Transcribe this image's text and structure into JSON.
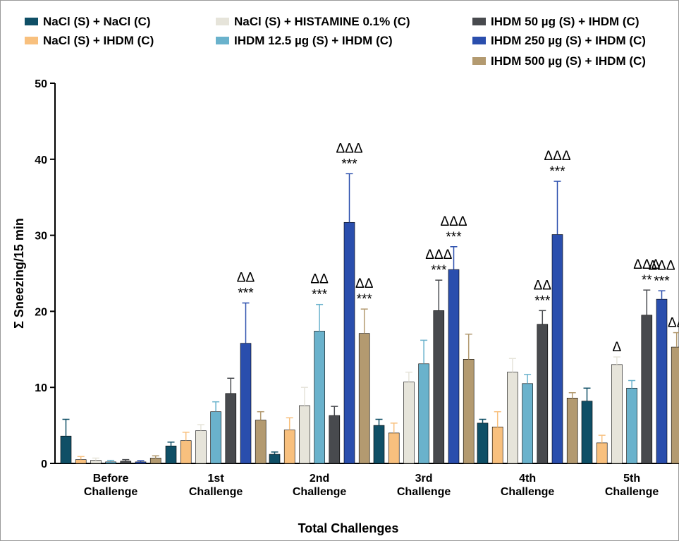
{
  "chart_data": {
    "type": "bar",
    "xlabel": "Total Challenges",
    "ylabel": "Σ Sneezing/15 min",
    "ylim": [
      0,
      50
    ],
    "yticks": [
      0,
      10,
      20,
      30,
      40,
      50
    ],
    "categories": [
      [
        "Before",
        "Challenge"
      ],
      [
        "1st",
        "Challenge"
      ],
      [
        "2nd",
        "Challenge"
      ],
      [
        "3rd",
        "Challenge"
      ],
      [
        "4th",
        "Challenge"
      ],
      [
        "5th",
        "Challenge"
      ]
    ],
    "grid": false,
    "legend_position": "top",
    "series": [
      {
        "name": "NaCl (S) + NaCl (C)",
        "color": "#0f4f66",
        "values": [
          3.6,
          2.3,
          1.2,
          5.0,
          5.3,
          8.2
        ],
        "errors": [
          2.2,
          0.5,
          0.3,
          0.8,
          0.5,
          1.7
        ],
        "marks": [
          [],
          [],
          [],
          [],
          [],
          []
        ]
      },
      {
        "name": "NaCl (S) + IHDM (C)",
        "color": "#f8c07e",
        "values": [
          0.5,
          3.0,
          4.4,
          4.0,
          4.8,
          2.7
        ],
        "errors": [
          0.4,
          1.1,
          1.6,
          1.3,
          2.0,
          1.0
        ],
        "marks": [
          [],
          [],
          [],
          [],
          [],
          []
        ]
      },
      {
        "name": "NaCl (S) + HISTAMINE 0.1% (C)",
        "color": "#e6e4da",
        "values": [
          0.4,
          4.3,
          7.6,
          10.7,
          12.0,
          13.0
        ],
        "errors": [
          0.3,
          0.8,
          2.4,
          1.3,
          1.8,
          1.0
        ],
        "marks": [
          [],
          [],
          [],
          [],
          [],
          [
            "Δ"
          ]
        ]
      },
      {
        "name": "IHDM 12.5 µg (S) + IHDM (C)",
        "color": "#6ab2cc",
        "values": [
          0.2,
          6.8,
          17.4,
          13.1,
          10.5,
          9.9
        ],
        "errors": [
          0.2,
          1.3,
          3.5,
          3.1,
          1.2,
          1.0
        ],
        "marks": [
          [],
          [],
          [
            "ΔΔ",
            "***"
          ],
          [],
          [],
          []
        ]
      },
      {
        "name": "IHDM   50 µg (S) + IHDM (C)",
        "color": "#484a4e",
        "values": [
          0.3,
          9.2,
          6.3,
          20.1,
          18.3,
          19.5
        ],
        "errors": [
          0.2,
          2.0,
          1.2,
          4.0,
          1.8,
          3.3
        ],
        "marks": [
          [],
          [],
          [],
          [
            "ΔΔΔ",
            "***"
          ],
          [
            "ΔΔ",
            "***"
          ],
          [
            "ΔΔΔ",
            "**"
          ]
        ]
      },
      {
        "name": "IHDM 250 µg (S) + IHDM (C)",
        "color": "#2a4ead",
        "values": [
          0.2,
          15.8,
          31.7,
          25.5,
          30.1,
          21.6
        ],
        "errors": [
          0.15,
          5.3,
          6.4,
          3.0,
          7.0,
          1.1
        ],
        "marks": [
          [],
          [
            "ΔΔ",
            "***"
          ],
          [
            "ΔΔΔ",
            "***"
          ],
          [
            "ΔΔΔ",
            "***"
          ],
          [
            "ΔΔΔ",
            "***"
          ],
          [
            "ΔΔΔ",
            "***"
          ]
        ]
      },
      {
        "name": "IHDM 500 µg (S) + IHDM (C)",
        "color": "#b39a70",
        "values": [
          0.7,
          5.7,
          17.1,
          13.7,
          8.6,
          15.3
        ],
        "errors": [
          0.3,
          1.1,
          3.2,
          3.3,
          0.7,
          1.9
        ],
        "marks": [
          [],
          [],
          [
            "ΔΔ",
            "***"
          ],
          [],
          [],
          [
            "ΔΔ"
          ]
        ]
      }
    ]
  }
}
